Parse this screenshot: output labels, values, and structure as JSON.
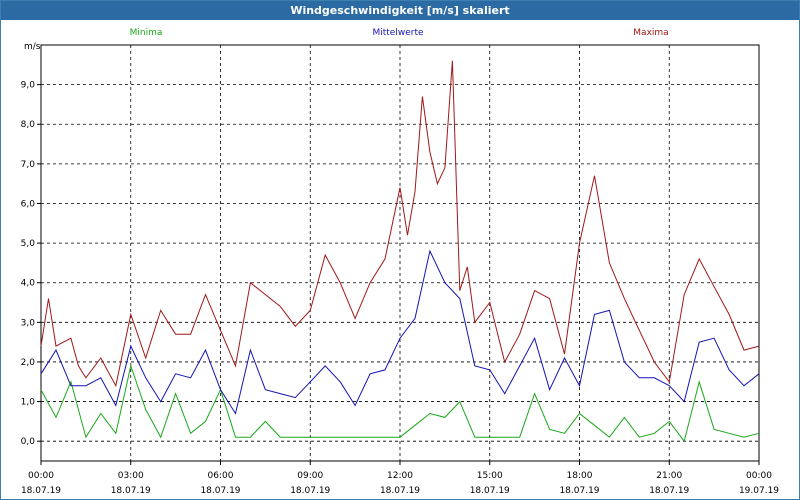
{
  "window": {
    "title": "Windgeschwindigkeit [m/s] skaliert"
  },
  "chart_data": {
    "type": "line",
    "ylabel": "m/s",
    "ylim": [
      -0.5,
      10.0
    ],
    "yticks": [
      "0,0",
      "1,0",
      "2,0",
      "3,0",
      "4,0",
      "5,0",
      "6,0",
      "7,0",
      "8,0",
      "9,0"
    ],
    "yticks_values": [
      0,
      1,
      2,
      3,
      4,
      5,
      6,
      7,
      8,
      9
    ],
    "xlim": [
      0,
      24
    ],
    "xticks": [
      {
        "hour": 0,
        "time": "00:00",
        "date": "18.07.19"
      },
      {
        "hour": 3,
        "time": "03:00",
        "date": "18.07.19"
      },
      {
        "hour": 6,
        "time": "06:00",
        "date": "18.07.19"
      },
      {
        "hour": 9,
        "time": "09:00",
        "date": "18.07.19"
      },
      {
        "hour": 12,
        "time": "12:00",
        "date": "18.07.19"
      },
      {
        "hour": 15,
        "time": "15:00",
        "date": "18.07.19"
      },
      {
        "hour": 18,
        "time": "18:00",
        "date": "18.07.19"
      },
      {
        "hour": 21,
        "time": "21:00",
        "date": "18.07.19"
      },
      {
        "hour": 24,
        "time": "00:00",
        "date": "19.07.19"
      }
    ],
    "grid": true,
    "series": [
      {
        "name": "Minima",
        "color": "#1aa81a",
        "legend_pos": "left",
        "x": [
          0,
          0.5,
          1,
          1.5,
          2,
          2.5,
          3,
          3.5,
          4,
          4.5,
          5,
          5.5,
          6,
          6.5,
          7,
          7.5,
          8,
          8.5,
          9,
          9.5,
          10,
          10.5,
          11,
          11.5,
          12,
          12.5,
          13,
          13.5,
          14,
          14.5,
          15,
          15.5,
          16,
          16.5,
          17,
          17.5,
          18,
          18.5,
          19,
          19.5,
          20,
          20.5,
          21,
          21.5,
          22,
          22.5,
          23,
          23.5,
          24
        ],
        "values": [
          1.3,
          0.6,
          1.5,
          0.1,
          0.7,
          0.2,
          1.9,
          0.8,
          0.1,
          1.2,
          0.2,
          0.5,
          1.3,
          0.1,
          0.1,
          0.5,
          0.1,
          0.1,
          0.1,
          0.1,
          0.1,
          0.1,
          0.1,
          0.1,
          0.1,
          0.4,
          0.7,
          0.6,
          1.0,
          0.1,
          0.1,
          0.1,
          0.1,
          1.2,
          0.3,
          0.2,
          0.7,
          0.4,
          0.1,
          0.6,
          0.1,
          0.2,
          0.5,
          0.0,
          1.5,
          0.3,
          0.2,
          0.1,
          0.2
        ]
      },
      {
        "name": "Mittelwerte",
        "color": "#1414b4",
        "legend_pos": "center",
        "x": [
          0,
          0.5,
          1,
          1.5,
          2,
          2.5,
          3,
          3.5,
          4,
          4.5,
          5,
          5.5,
          6,
          6.5,
          7,
          7.5,
          8,
          8.5,
          9,
          9.5,
          10,
          10.5,
          11,
          11.5,
          12,
          12.5,
          13,
          13.5,
          14,
          14.5,
          15,
          15.5,
          16,
          16.5,
          17,
          17.5,
          18,
          18.5,
          19,
          19.5,
          20,
          20.5,
          21,
          21.5,
          22,
          22.5,
          23,
          23.5,
          24
        ],
        "values": [
          1.7,
          2.3,
          1.4,
          1.4,
          1.6,
          0.9,
          2.4,
          1.6,
          1.0,
          1.7,
          1.6,
          2.3,
          1.3,
          0.7,
          2.3,
          1.3,
          1.2,
          1.1,
          1.5,
          1.9,
          1.5,
          0.9,
          1.7,
          1.8,
          2.6,
          3.1,
          4.8,
          4.0,
          3.6,
          1.9,
          1.8,
          1.2,
          1.9,
          2.6,
          1.3,
          2.1,
          1.4,
          3.2,
          3.3,
          2.0,
          1.6,
          1.6,
          1.4,
          1.0,
          2.5,
          2.6,
          1.8,
          1.4,
          1.7
        ]
      },
      {
        "name": "Maxima",
        "color": "#a01818",
        "legend_pos": "right",
        "x": [
          0,
          0.25,
          0.5,
          0.75,
          1,
          1.25,
          1.5,
          2,
          2.5,
          3,
          3.5,
          4,
          4.5,
          5,
          5.5,
          6,
          6.5,
          7,
          7.5,
          8,
          8.5,
          9,
          9.5,
          10,
          10.5,
          11,
          11.5,
          12,
          12.25,
          12.5,
          12.75,
          13,
          13.25,
          13.5,
          13.75,
          14,
          14.25,
          14.5,
          15,
          15.5,
          16,
          16.5,
          17,
          17.5,
          18,
          18.5,
          19,
          19.5,
          20,
          20.5,
          21,
          21.5,
          22,
          22.5,
          23,
          23.5,
          24
        ],
        "values": [
          2.4,
          3.6,
          2.4,
          2.5,
          2.6,
          1.9,
          1.6,
          2.1,
          1.4,
          3.2,
          2.1,
          3.3,
          2.7,
          2.7,
          3.7,
          2.8,
          1.9,
          4.0,
          3.7,
          3.4,
          2.9,
          3.3,
          4.7,
          4.0,
          3.1,
          4.0,
          4.6,
          6.4,
          5.2,
          6.3,
          8.7,
          7.3,
          6.5,
          6.9,
          9.6,
          3.8,
          4.4,
          3.0,
          3.5,
          2.0,
          2.7,
          3.8,
          3.6,
          2.2,
          5.0,
          6.7,
          4.5,
          3.6,
          2.8,
          2.0,
          1.5,
          3.7,
          4.6,
          3.9,
          3.2,
          2.3,
          2.4
        ]
      }
    ]
  }
}
